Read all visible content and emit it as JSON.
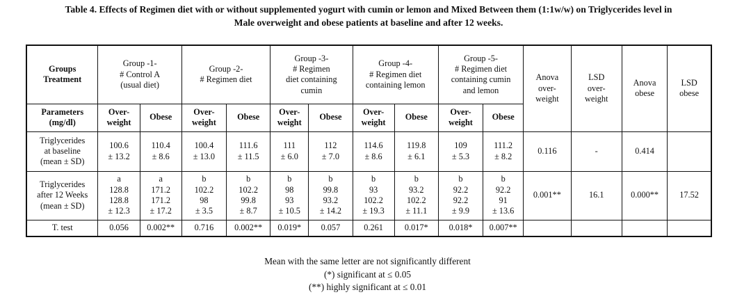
{
  "caption": {
    "line1": "Table 4. Effects of Regimen diet with or without supplemented yogurt with cumin or lemon and Mixed Between them (1:1w/w) on Triglycerides level in",
    "line2": "Male overweight and obese patients at baseline and after 12 weeks."
  },
  "header": {
    "groups_treatment": [
      "Groups",
      "Treatment"
    ],
    "group1": [
      "Group -1-",
      "# Control A",
      "(usual diet)"
    ],
    "group2": [
      "Group -2-",
      "# Regimen diet"
    ],
    "group3": [
      "Group -3-",
      "# Regimen",
      "diet containing",
      "cumin"
    ],
    "group4": [
      "Group -4-",
      "# Regimen diet",
      "containing lemon"
    ],
    "group5": [
      "Group -5-",
      "# Regimen diet",
      "containing cumin",
      "and lemon"
    ],
    "anova_ow": [
      "Anova",
      "over-",
      "weight"
    ],
    "lsd_ow": [
      "LSD",
      "over-",
      "weight"
    ],
    "anova_ob": [
      "Anova",
      "obese"
    ],
    "lsd_ob": [
      "LSD",
      "obese"
    ]
  },
  "subheader": {
    "parameters": [
      "Parameters",
      "(mg/dl)"
    ],
    "overweight": [
      "Over-",
      "weight"
    ],
    "obese": "Obese"
  },
  "row_baseline": {
    "label": [
      "Triglycerides",
      "at baseline",
      "(mean ± SD)"
    ],
    "g1_ow": [
      "100.6",
      "± 13.2"
    ],
    "g1_ob": [
      "110.4",
      "± 8.6"
    ],
    "g2_ow": [
      "100.4",
      "± 13.0"
    ],
    "g2_ob": [
      "111.6",
      "± 11.5"
    ],
    "g3_ow": [
      "111",
      "± 6.0"
    ],
    "g3_ob": [
      "112",
      "± 7.0"
    ],
    "g4_ow": [
      "114.6",
      "± 8.6"
    ],
    "g4_ob": [
      "119.8",
      "± 6.1"
    ],
    "g5_ow": [
      "109",
      "± 5.3"
    ],
    "g5_ob": [
      "111.2",
      "± 8.2"
    ],
    "anova_ow": "0.116",
    "lsd_ow": "-",
    "anova_ob": "0.414",
    "lsd_ob": ""
  },
  "row_12w": {
    "label": [
      "Triglycerides",
      "after 12 Weeks",
      "(mean ± SD)"
    ],
    "g1_ow": [
      "a",
      "128.8",
      "128.8",
      "± 12.3"
    ],
    "g1_ob": [
      "a",
      "171.2",
      "171.2",
      "± 17.2"
    ],
    "g2_ow": [
      "b",
      "102.2",
      "98",
      "± 3.5"
    ],
    "g2_ob": [
      "b",
      "102.2",
      "99.8",
      "± 8.7"
    ],
    "g3_ow": [
      "b",
      "98",
      "93",
      "± 10.5"
    ],
    "g3_ob": [
      "b",
      "99.8",
      "93.2",
      "± 14.2"
    ],
    "g4_ow": [
      "b",
      "93",
      "102.2",
      "± 19.3"
    ],
    "g4_ob": [
      "b",
      "93.2",
      "102.2",
      "± 11.1"
    ],
    "g5_ow": [
      "b",
      "92.2",
      "92.2",
      "± 9.9"
    ],
    "g5_ob": [
      "b",
      "92.2",
      "91",
      "± 13.6"
    ],
    "anova_ow": "0.001**",
    "lsd_ow": "16.1",
    "anova_ob": "0.000**",
    "lsd_ob": "17.52"
  },
  "row_ttest": {
    "label": "T. test",
    "g1_ow": "0.056",
    "g1_ob": "0.002**",
    "g2_ow": "0.716",
    "g2_ob": "0.002**",
    "g3_ow": "0.019*",
    "g3_ob": "0.057",
    "g4_ow": "0.261",
    "g4_ob": "0.017*",
    "g5_ow": "0.018*",
    "g5_ob": "0.007**"
  },
  "notes": [
    "Mean with the same letter are not significantly different",
    "(*) significant at ≤ 0.05",
    "(**) highly significant at ≤ 0.01"
  ]
}
